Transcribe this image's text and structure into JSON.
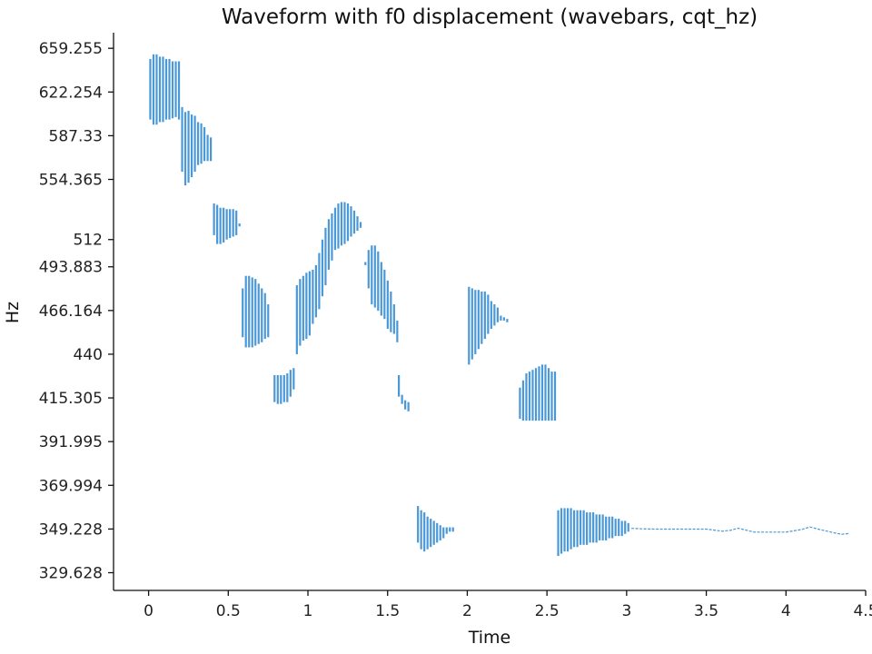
{
  "chart_data": {
    "type": "bar",
    "title": "Waveform with f0 displacement (wavebars, cqt_hz)",
    "xlabel": "Time",
    "ylabel": "Hz",
    "xlim": [
      -0.22,
      4.5
    ],
    "ylim": [
      322.0,
      673.0
    ],
    "y_scale": "log",
    "x_ticks": [
      0,
      0.5,
      1,
      1.5,
      2,
      2.5,
      3,
      3.5,
      4,
      4.5
    ],
    "x_tick_labels": [
      "0",
      "0.5",
      "1",
      "1.5",
      "2",
      "2.5",
      "3",
      "3.5",
      "4",
      "4.5"
    ],
    "y_ticks": [
      329.628,
      349.228,
      369.994,
      391.995,
      415.305,
      440,
      466.164,
      493.883,
      512,
      554.365,
      587.33,
      622.254,
      659.255
    ],
    "y_tick_labels": [
      "329.628",
      "349.228",
      "369.994",
      "391.995",
      "415.305",
      "440",
      "466.164",
      "493.883",
      "512",
      "554.365",
      "587.33",
      "622.254",
      "659.255"
    ],
    "grid": false,
    "bar_color": "#4a98d8",
    "series": [
      {
        "x": [
          0.01,
          0.03,
          0.05,
          0.07,
          0.09,
          0.11,
          0.13,
          0.15,
          0.17,
          0.19,
          0.21,
          0.23,
          0.25,
          0.27,
          0.29,
          0.31,
          0.33,
          0.35,
          0.37,
          0.39
        ],
        "low": [
          600,
          596,
          596,
          598,
          598,
          600,
          600,
          601,
          602,
          600,
          560,
          550,
          552,
          556,
          560,
          565,
          566,
          568,
          568,
          568
        ],
        "high": [
          650,
          654,
          654,
          652,
          652,
          650,
          650,
          648,
          648,
          648,
          610,
          606,
          607,
          604,
          603,
          598,
          597,
          594,
          588,
          586
        ]
      },
      {
        "x": [
          0.41,
          0.43,
          0.45,
          0.47,
          0.49,
          0.51,
          0.53,
          0.55,
          0.57
        ],
        "low": [
          515,
          509,
          509,
          510,
          512,
          513,
          514,
          515,
          521
        ],
        "high": [
          537,
          536,
          534,
          534,
          533,
          533,
          533,
          532,
          523
        ]
      },
      {
        "x": [
          0.59,
          0.61,
          0.63,
          0.65,
          0.67,
          0.69,
          0.71,
          0.73,
          0.75
        ],
        "low": [
          450,
          444,
          444,
          444,
          445,
          446,
          447,
          449,
          450
        ],
        "high": [
          480,
          488,
          488,
          487,
          486,
          483,
          480,
          477,
          470
        ]
      },
      {
        "x": [
          0.79,
          0.81,
          0.83,
          0.85,
          0.87,
          0.89,
          0.91
        ],
        "low": [
          413,
          412,
          412,
          413,
          413,
          416,
          420
        ],
        "high": [
          428,
          428,
          428,
          428,
          429,
          431,
          432
        ]
      },
      {
        "x": [
          0.93,
          0.95,
          0.97,
          0.99,
          1.01,
          1.03,
          1.05,
          1.07,
          1.09,
          1.11,
          1.13,
          1.15,
          1.17,
          1.19,
          1.21,
          1.23,
          1.25,
          1.27,
          1.29,
          1.31,
          1.33
        ],
        "low": [
          440,
          445,
          448,
          449,
          451,
          458,
          462,
          467,
          475,
          482,
          492,
          498,
          505,
          506,
          508,
          509,
          511,
          514,
          516,
          518,
          520
        ],
        "high": [
          482,
          486,
          488,
          490,
          491,
          492,
          495,
          503,
          512,
          520,
          526,
          530,
          534,
          537,
          538,
          538,
          537,
          535,
          532,
          528,
          524
        ]
      },
      {
        "x": [
          1.36,
          1.38,
          1.4,
          1.42,
          1.44,
          1.46,
          1.48,
          1.5,
          1.52,
          1.54,
          1.56
        ],
        "low": [
          495,
          480,
          470,
          468,
          466,
          463,
          461,
          455,
          453,
          452,
          447
        ],
        "high": [
          497,
          505,
          508,
          508,
          504,
          497,
          492,
          485,
          478,
          470,
          460
        ]
      },
      {
        "x": [
          1.57,
          1.59,
          1.61,
          1.63
        ],
        "low": [
          416,
          412,
          409,
          408
        ],
        "high": [
          428,
          417,
          414,
          413
        ]
      },
      {
        "x": [
          1.69,
          1.71,
          1.73,
          1.75,
          1.77,
          1.79,
          1.81,
          1.83,
          1.85,
          1.87,
          1.89,
          1.91
        ],
        "low": [
          343,
          340,
          339,
          340,
          341,
          342,
          343,
          344,
          345,
          347,
          348,
          348
        ],
        "high": [
          360,
          358,
          357,
          355,
          354,
          353,
          352,
          351,
          350,
          350,
          350,
          350
        ]
      },
      {
        "x": [
          2.01,
          2.03,
          2.05,
          2.07,
          2.09,
          2.11,
          2.13,
          2.15,
          2.17,
          2.19,
          2.21,
          2.23,
          2.25
        ],
        "low": [
          434,
          437,
          440,
          443,
          446,
          449,
          452,
          455,
          457,
          459,
          460,
          460,
          459
        ],
        "high": [
          481,
          480,
          479,
          479,
          478,
          478,
          476,
          472,
          470,
          468,
          463,
          462,
          461
        ]
      },
      {
        "x": [
          2.33,
          2.35,
          2.37,
          2.39,
          2.41,
          2.43,
          2.45,
          2.47,
          2.49,
          2.51,
          2.53,
          2.55
        ],
        "low": [
          404,
          403,
          403,
          403,
          403,
          403,
          403,
          403,
          403,
          403,
          403,
          403
        ],
        "high": [
          421,
          425,
          429,
          430,
          431,
          432,
          433,
          434,
          434,
          432,
          430,
          430
        ]
      },
      {
        "x": [
          2.57,
          2.59,
          2.61,
          2.63,
          2.65,
          2.67,
          2.69,
          2.71,
          2.73,
          2.75,
          2.77,
          2.79,
          2.81,
          2.83,
          2.85,
          2.87,
          2.89,
          2.91,
          2.93,
          2.95,
          2.97,
          2.99,
          3.01
        ],
        "low": [
          337,
          338,
          339,
          339,
          340,
          341,
          341,
          342,
          342,
          342,
          343,
          343,
          343,
          344,
          344,
          344,
          345,
          345,
          346,
          346,
          346,
          347,
          348
        ],
        "high": [
          358,
          359,
          359,
          359,
          359,
          358,
          358,
          358,
          358,
          357,
          357,
          357,
          356,
          356,
          356,
          355,
          355,
          355,
          354,
          354,
          353,
          353,
          352
        ]
      }
    ],
    "trace": {
      "x": [
        3.03,
        3.1,
        3.2,
        3.3,
        3.4,
        3.5,
        3.6,
        3.65,
        3.7,
        3.8,
        3.9,
        4.0,
        4.1,
        4.15,
        4.2,
        4.3,
        4.35,
        4.4
      ],
      "y": [
        349.5,
        349.3,
        349.2,
        349.2,
        349.2,
        349.2,
        348.2,
        348.6,
        349.6,
        347.8,
        347.8,
        347.8,
        349.0,
        350.2,
        349.2,
        347.5,
        346.8,
        347.2
      ]
    }
  }
}
